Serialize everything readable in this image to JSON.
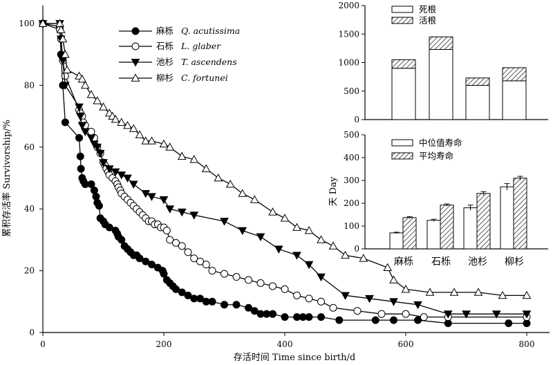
{
  "chart_data": [
    {
      "type": "line",
      "xlabel": "存活时间 Time since birth/d",
      "ylabel": "累积存活率 Survivorship/%",
      "xlim": [
        0,
        800
      ],
      "ylim": [
        0,
        105
      ],
      "xticks": [
        0,
        200,
        400,
        600,
        800
      ],
      "yticks": [
        0,
        20,
        40,
        60,
        80,
        100
      ],
      "legend_position": "top-left",
      "series": [
        {
          "name": "麻栎",
          "latin": "Q. acutissima",
          "marker": "filled-circle",
          "x": [
            0,
            28,
            30,
            33,
            37,
            60,
            62,
            63,
            65,
            67,
            70,
            80,
            85,
            88,
            90,
            93,
            95,
            100,
            103,
            110,
            120,
            123,
            125,
            130,
            135,
            140,
            145,
            150,
            155,
            160,
            170,
            180,
            190,
            198,
            200,
            205,
            210,
            215,
            220,
            230,
            240,
            250,
            260,
            270,
            280,
            300,
            320,
            340,
            350,
            360,
            370,
            380,
            400,
            420,
            430,
            440,
            460,
            490,
            550,
            580,
            620,
            670,
            770,
            800
          ],
          "y": [
            100,
            99,
            90,
            80,
            68,
            63,
            57,
            53,
            50,
            49,
            48,
            48,
            46,
            44,
            42,
            41,
            37,
            36,
            35,
            34,
            33,
            32,
            31,
            30,
            28,
            27,
            26,
            25,
            25,
            24,
            23,
            22,
            21,
            20,
            19,
            17,
            16,
            15,
            14,
            13,
            12,
            11,
            11,
            10,
            10,
            9,
            9,
            8,
            7,
            6,
            6,
            6,
            5,
            5,
            5,
            5,
            5,
            4,
            4,
            4,
            4,
            3,
            3,
            3
          ]
        },
        {
          "name": "石栎",
          "latin": "L. glaber",
          "marker": "open-circle",
          "x": [
            0,
            28,
            30,
            33,
            37,
            60,
            62,
            65,
            67,
            70,
            80,
            85,
            90,
            95,
            100,
            103,
            105,
            108,
            110,
            115,
            120,
            123,
            125,
            128,
            130,
            135,
            140,
            145,
            150,
            155,
            160,
            165,
            170,
            175,
            180,
            185,
            190,
            195,
            200,
            205,
            210,
            220,
            230,
            240,
            250,
            260,
            270,
            280,
            300,
            320,
            340,
            360,
            380,
            400,
            420,
            440,
            460,
            480,
            520,
            560,
            600,
            630,
            670,
            800
          ],
          "y": [
            100,
            98,
            95,
            88,
            83,
            72,
            71,
            70,
            68,
            67,
            65,
            63,
            60,
            58,
            55,
            54,
            53,
            52,
            51,
            50,
            49,
            48,
            47,
            46,
            45,
            44,
            43,
            42,
            41,
            40,
            39,
            38,
            37,
            36,
            36,
            35,
            35,
            34,
            34,
            33,
            30,
            29,
            28,
            26,
            24,
            23,
            22,
            20,
            19,
            18,
            17,
            16,
            15,
            14,
            12,
            11,
            10,
            8,
            7,
            6,
            6,
            5,
            5,
            5
          ]
        },
        {
          "name": "池杉",
          "latin": "T. ascendens",
          "marker": "filled-triangle-down",
          "x": [
            0,
            28,
            30,
            33,
            37,
            60,
            62,
            65,
            70,
            80,
            85,
            90,
            95,
            100,
            110,
            120,
            130,
            140,
            150,
            170,
            180,
            200,
            210,
            230,
            250,
            300,
            330,
            360,
            390,
            420,
            440,
            460,
            500,
            540,
            580,
            620,
            670,
            700,
            750,
            800
          ],
          "y": [
            100,
            100,
            95,
            88,
            80,
            73,
            70,
            67,
            65,
            63,
            61,
            60,
            58,
            55,
            53,
            52,
            51,
            50,
            48,
            45,
            44,
            43,
            40,
            39,
            38,
            36,
            33,
            31,
            27,
            25,
            22,
            18,
            12,
            11,
            10,
            9,
            6,
            6,
            6,
            6
          ]
        },
        {
          "name": "柳杉",
          "latin": "C. fortunei",
          "marker": "open-triangle-up",
          "x": [
            0,
            28,
            30,
            33,
            37,
            40,
            60,
            65,
            70,
            80,
            90,
            100,
            110,
            115,
            120,
            130,
            140,
            150,
            160,
            170,
            180,
            200,
            210,
            230,
            250,
            270,
            290,
            310,
            330,
            350,
            380,
            400,
            420,
            440,
            460,
            480,
            500,
            530,
            570,
            580,
            600,
            640,
            680,
            720,
            760,
            800
          ],
          "y": [
            100,
            100,
            98,
            95,
            90,
            85,
            83,
            82,
            80,
            77,
            75,
            73,
            71,
            70,
            69,
            68,
            67,
            66,
            64,
            62,
            62,
            61,
            60,
            57,
            56,
            53,
            50,
            48,
            45,
            43,
            39,
            37,
            34,
            33,
            30,
            28,
            25,
            24,
            21,
            17,
            14,
            13,
            13,
            13,
            12,
            12
          ]
        }
      ]
    },
    {
      "type": "bar",
      "stacked": true,
      "categories": [
        "麻栎",
        "石栎",
        "池杉",
        "柳杉"
      ],
      "ylim": [
        0,
        2000
      ],
      "yticks": [
        0,
        500,
        1000,
        1500,
        2000
      ],
      "legend_position": "top-left",
      "series": [
        {
          "name": "死根",
          "fill": "white",
          "values": [
            900,
            1230,
            600,
            680
          ]
        },
        {
          "name": "活根",
          "fill": "hatched",
          "values": [
            150,
            220,
            130,
            230
          ]
        }
      ]
    },
    {
      "type": "bar",
      "grouped": true,
      "categories": [
        "麻栎",
        "石栎",
        "池杉",
        "柳杉"
      ],
      "ylabel": "天 Day",
      "ylim": [
        0,
        500
      ],
      "yticks": [
        0,
        100,
        200,
        300,
        400,
        500
      ],
      "legend_position": "top-left",
      "series": [
        {
          "name": "中位值寿命",
          "fill": "white",
          "values": [
            70,
            125,
            180,
            272
          ],
          "errors": [
            3,
            5,
            12,
            14
          ]
        },
        {
          "name": "平均寿命",
          "fill": "hatched",
          "values": [
            137,
            192,
            243,
            310
          ],
          "errors": [
            4,
            5,
            8,
            8
          ]
        }
      ]
    }
  ]
}
